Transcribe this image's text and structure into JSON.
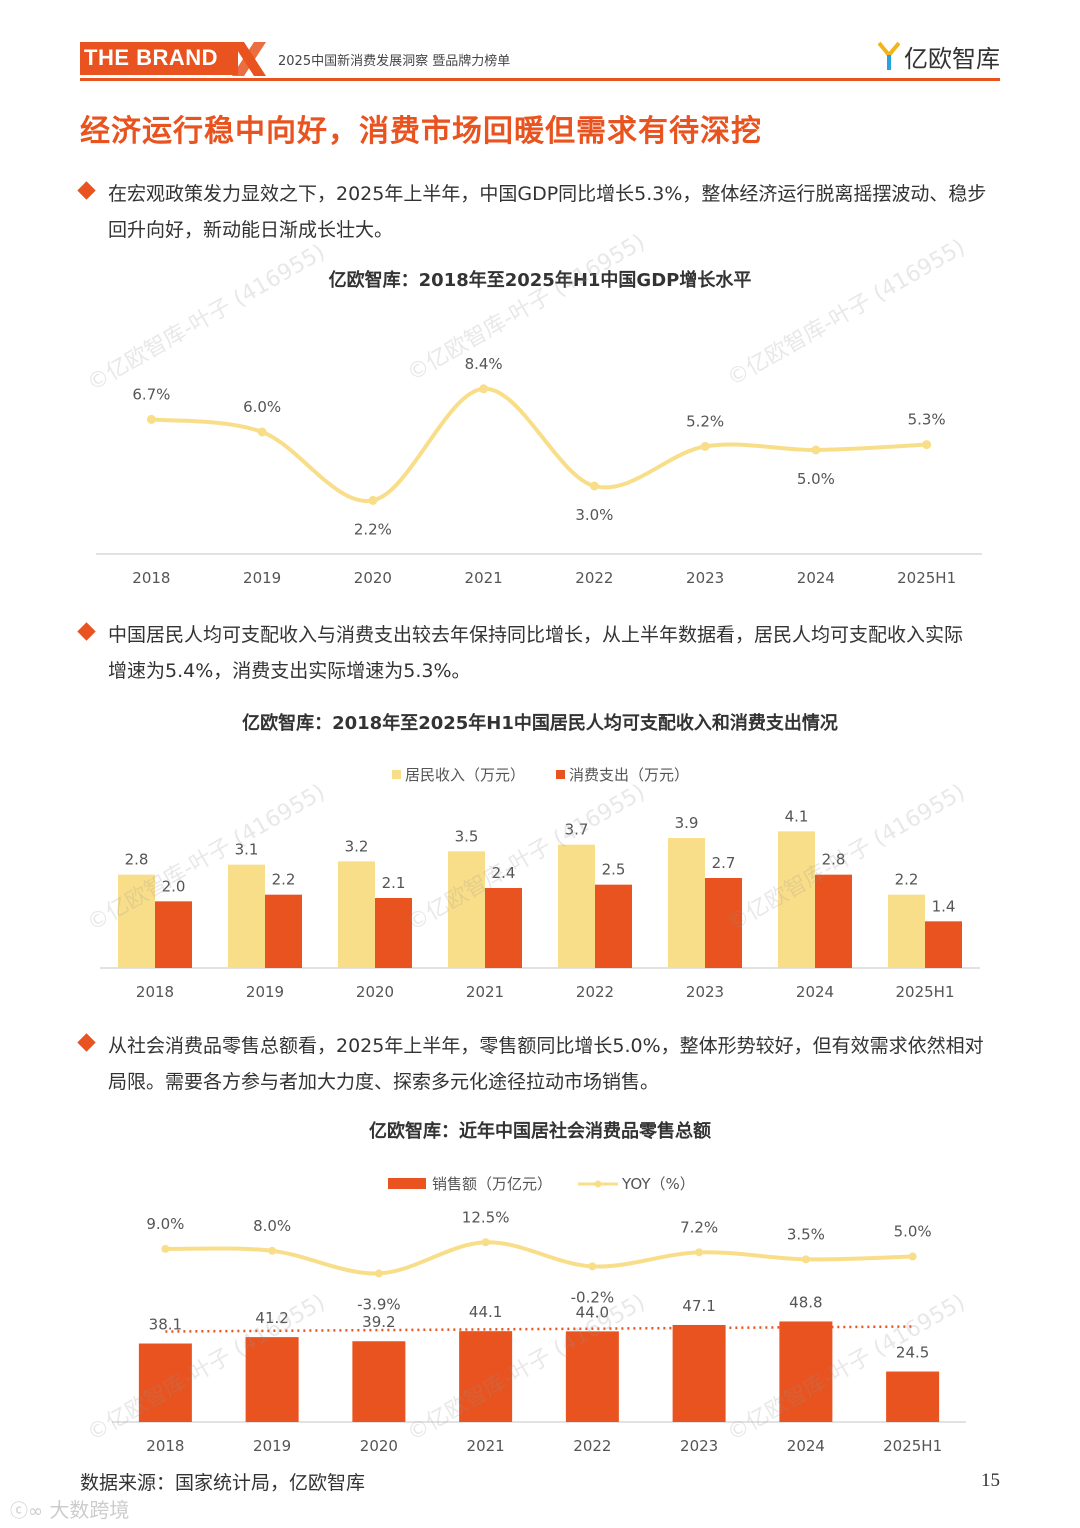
{
  "header": {
    "brand": "THE BRAND",
    "subtitle": "2025中国新消费发展洞察 暨品牌力榜单",
    "logo_text": "亿欧智库",
    "accent": "#e8531f"
  },
  "page_title": "经济运行稳中向好，消费市场回暖但需求有待深挖",
  "bullets": [
    {
      "lines": [
        "在宏观政策发力显效之下，2025年上半年，中国GDP同比增长5.3%，整体经济运行脱离摇摆波动、稳步",
        "回升向好，新动能日渐成长壮大。"
      ]
    },
    {
      "lines": [
        "中国居民人均可支配收入与消费支出较去年保持同比增长，从上半年数据看，居民人均可支配收入实际",
        "增速为5.4%，消费支出实际增速为5.3%。"
      ]
    },
    {
      "lines": [
        "从社会消费品零售总额看，2025年上半年，零售额同比增长5.0%，整体形势较好，但有效需求依然相对",
        "局限。需要各方参与者加大力度、探索多元化途径拉动市场销售。"
      ]
    }
  ],
  "watermark": "©亿欧智库-叶子 (416955)",
  "chart_data": [
    {
      "type": "line",
      "title": "亿欧智库：2018年至2025年H1中国GDP增长水平",
      "categories": [
        "2018",
        "2019",
        "2020",
        "2021",
        "2022",
        "2023",
        "2024",
        "2025H1"
      ],
      "series": [
        {
          "values": [
            6.7,
            6.0,
            2.2,
            8.4,
            3.0,
            5.2,
            5.0,
            5.3
          ],
          "labels": [
            "6.7%",
            "6.0%",
            "2.2%",
            "8.4%",
            "3.0%",
            "5.2%",
            "5.0%",
            "5.3%"
          ],
          "color": "#f9de8a"
        }
      ],
      "ylim": [
        0,
        10
      ],
      "grid": false
    },
    {
      "type": "bar",
      "title": "亿欧智库：2018年至2025年H1中国居民人均可支配收入和消费支出情况",
      "legend": "top",
      "categories": [
        "2018",
        "2019",
        "2020",
        "2021",
        "2022",
        "2023",
        "2024",
        "2025H1"
      ],
      "series": [
        {
          "name": "居民收入（万元）",
          "color": "#f9de8a",
          "values": [
            2.8,
            3.1,
            3.2,
            3.5,
            3.7,
            3.9,
            4.1,
            2.2
          ],
          "labels": [
            "2.8",
            "3.1",
            "3.2",
            "3.5",
            "3.7",
            "3.9",
            "4.1",
            "2.2"
          ]
        },
        {
          "name": "消费支出（万元）",
          "color": "#e8531f",
          "values": [
            2.0,
            2.2,
            2.1,
            2.4,
            2.5,
            2.7,
            2.8,
            1.4
          ],
          "labels": [
            "2.0",
            "2.2",
            "2.1",
            "2.4",
            "2.5",
            "2.7",
            "2.8",
            "1.4"
          ]
        }
      ],
      "ylim": [
        0,
        4.5
      ]
    },
    {
      "type": "bar",
      "title": "亿欧智库：近年中国居社会消费品零售总额",
      "legend": "top",
      "categories": [
        "2018",
        "2019",
        "2020",
        "2021",
        "2022",
        "2023",
        "2024",
        "2025H1"
      ],
      "series": [
        {
          "name": "销售额（万亿元）",
          "color": "#e8531f",
          "values": [
            38.1,
            41.2,
            39.2,
            44.1,
            44.0,
            47.1,
            48.8,
            24.5
          ],
          "labels": [
            "38.1",
            "41.2",
            "39.2",
            "44.1",
            "44.0",
            "47.1",
            "48.8",
            "24.5"
          ]
        },
        {
          "name": "YOY（%）",
          "type": "line",
          "color": "#f9de8a",
          "values": [
            9.0,
            8.0,
            -3.9,
            12.5,
            -0.2,
            7.2,
            3.5,
            5.0
          ],
          "labels": [
            "9.0%",
            "8.0%",
            "-3.9%",
            "12.5%",
            "-0.2%",
            "7.2%",
            "3.5%",
            "5.0%"
          ]
        }
      ],
      "trendline": "dotted"
    }
  ],
  "footer": {
    "source": "数据来源：国家统计局，亿欧智库",
    "page_number": "15",
    "corner_mark": "大数跨境"
  }
}
